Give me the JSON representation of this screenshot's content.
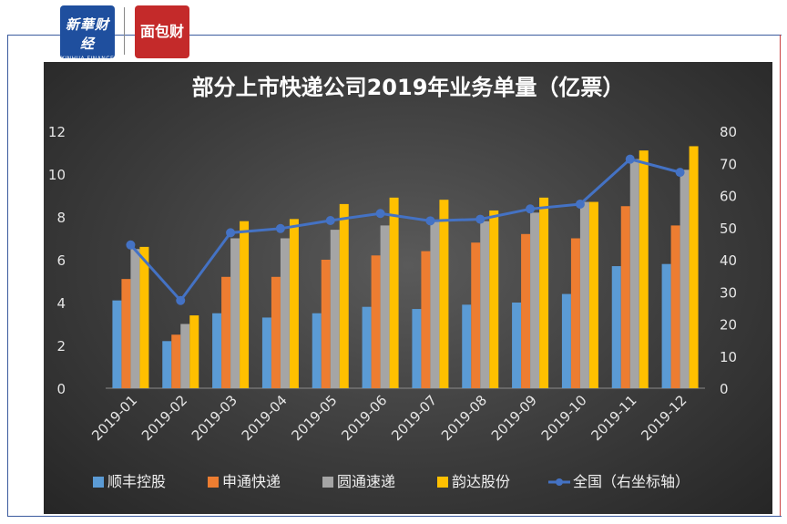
{
  "logos": {
    "xinhua_text": "新華财经",
    "xinhua_sub": "XINHUA FINANCE",
    "xinhua_dots": "• • • •",
    "caijing_text": "面包财经"
  },
  "colors": {
    "sf": "#5b9bd5",
    "zto_sto": "#ed7d31",
    "yto": "#a5a5a5",
    "yunda": "#ffc000",
    "national": "#4472c4"
  },
  "chart_data": {
    "type": "bar",
    "title": "部分上市快递公司2019年业务单量（亿票）",
    "categories": [
      "2019-01",
      "2019-02",
      "2019-03",
      "2019-04",
      "2019-05",
      "2019-06",
      "2019-07",
      "2019-08",
      "2019-09",
      "2019-10",
      "2019-11",
      "2019-12"
    ],
    "series": [
      {
        "name": "顺丰控股",
        "axis": "left",
        "values": [
          4.1,
          2.2,
          3.5,
          3.3,
          3.5,
          3.8,
          3.7,
          3.9,
          4.0,
          4.4,
          5.7,
          5.8
        ]
      },
      {
        "name": "申通快递",
        "axis": "left",
        "values": [
          5.1,
          2.5,
          5.2,
          5.2,
          6.0,
          6.2,
          6.4,
          6.8,
          7.2,
          7.0,
          8.5,
          7.6
        ]
      },
      {
        "name": "圆通速递",
        "axis": "left",
        "values": [
          6.5,
          3.0,
          7.0,
          7.0,
          7.4,
          7.6,
          7.8,
          7.8,
          8.2,
          8.7,
          10.7,
          10.2
        ]
      },
      {
        "name": "韵达股份",
        "axis": "left",
        "values": [
          6.6,
          3.4,
          7.8,
          7.9,
          8.6,
          8.9,
          8.8,
          8.3,
          8.9,
          8.7,
          11.1,
          11.3
        ]
      },
      {
        "name": "全国（右坐标轴）",
        "axis": "right",
        "type": "line",
        "values": [
          44.6,
          27.3,
          48.4,
          49.7,
          52.2,
          54.4,
          52.1,
          52.6,
          55.8,
          57.3,
          71.3,
          67.2
        ]
      }
    ],
    "yleft": {
      "min": 0,
      "max": 12,
      "ticks": [
        0,
        2,
        4,
        6,
        8,
        10,
        12
      ]
    },
    "yright": {
      "min": 0,
      "max": 80,
      "ticks": [
        0,
        10,
        20,
        30,
        40,
        50,
        60,
        70,
        80
      ]
    },
    "legend_position": "bottom"
  }
}
